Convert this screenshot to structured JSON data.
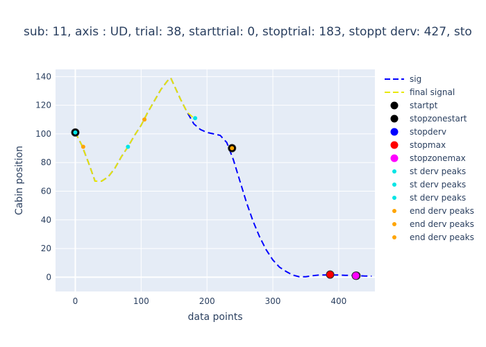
{
  "chart_data": {
    "type": "line",
    "title": "sub: 11, axis : UD, trial: 38, starttrial: 0, stoptrial: 183, stoppt derv: 427, sto",
    "xlabel": "data points",
    "ylabel": "Cabin position",
    "xlim": [
      -30,
      455
    ],
    "ylim": [
      -10,
      145
    ],
    "x_ticks": [
      0,
      100,
      200,
      300,
      400
    ],
    "y_ticks": [
      0,
      20,
      40,
      60,
      80,
      100,
      120,
      140
    ],
    "grid": true,
    "legend_position": "right",
    "series": [
      {
        "name": "sig",
        "kind": "line",
        "dash": "dash",
        "color": "#0000ff",
        "x": [
          0,
          10,
          20,
          30,
          40,
          50,
          60,
          70,
          80,
          90,
          100,
          110,
          120,
          130,
          140,
          145,
          150,
          160,
          170,
          180,
          190,
          200,
          210,
          220,
          230,
          240,
          250,
          260,
          270,
          280,
          290,
          300,
          310,
          320,
          330,
          340,
          350,
          360,
          370,
          380,
          390,
          400,
          410,
          420,
          430,
          440,
          450
        ],
        "y": [
          101,
          92,
          80,
          67,
          67,
          70,
          76,
          84,
          91,
          99,
          106,
          115,
          123,
          131,
          137,
          139,
          134,
          124,
          115,
          107,
          103,
          101,
          100,
          99,
          94,
          82,
          67,
          52,
          39,
          28,
          19,
          12,
          7,
          4,
          1.5,
          0.3,
          0.3,
          1,
          1.5,
          1.5,
          1.5,
          1.5,
          1.3,
          1.2,
          1,
          0.8,
          0.7
        ]
      },
      {
        "name": "final signal",
        "kind": "line",
        "dash": "dash",
        "color": "#e8e800",
        "x": [
          0,
          10,
          20,
          30,
          40,
          50,
          60,
          70,
          80,
          90,
          100,
          110,
          120,
          130,
          140,
          145,
          150,
          160,
          170,
          180,
          183
        ],
        "y": [
          101,
          92,
          80,
          67,
          67,
          70,
          76,
          84,
          91,
          99,
          106,
          115,
          123,
          131,
          137,
          139,
          134,
          124,
          115,
          111,
          110
        ]
      },
      {
        "name": "startpt",
        "kind": "marker",
        "color": "#000000",
        "size": 9,
        "x": [
          0
        ],
        "y": [
          101
        ]
      },
      {
        "name": "stopzonestart",
        "kind": "marker",
        "color": "#000000",
        "size": 9,
        "x": [
          238
        ],
        "y": [
          90
        ]
      },
      {
        "name": "stopderv",
        "kind": "marker",
        "color": "#0000ff",
        "size": 9,
        "x": [
          427
        ],
        "y": [
          1
        ]
      },
      {
        "name": "stopmax",
        "kind": "marker",
        "color": "#ff0000",
        "size": 9,
        "x": [
          387
        ],
        "y": [
          1.8
        ]
      },
      {
        "name": "stopzonemax",
        "kind": "marker",
        "color": "#ff00ff",
        "size": 9,
        "x": [
          426
        ],
        "y": [
          1
        ]
      },
      {
        "name": "st derv peaks",
        "kind": "marker",
        "color": "#00e5e5",
        "size": 4,
        "x": [
          0
        ],
        "y": [
          101
        ]
      },
      {
        "name": "st derv peaks",
        "kind": "marker",
        "color": "#00e5e5",
        "size": 4,
        "x": [
          80
        ],
        "y": [
          91
        ]
      },
      {
        "name": "st derv peaks",
        "kind": "marker",
        "color": "#00e5e5",
        "size": 4,
        "x": [
          182
        ],
        "y": [
          111
        ]
      },
      {
        "name": "end derv peaks",
        "kind": "marker",
        "color": "#ffa500",
        "size": 4,
        "x": [
          12
        ],
        "y": [
          91
        ]
      },
      {
        "name": "end derv peaks",
        "kind": "marker",
        "color": "#ffa500",
        "size": 4,
        "x": [
          105
        ],
        "y": [
          110
        ]
      },
      {
        "name": "end derv peaks",
        "kind": "marker",
        "color": "#ffa500",
        "size": 4,
        "x": [
          238
        ],
        "y": [
          90
        ]
      }
    ]
  }
}
